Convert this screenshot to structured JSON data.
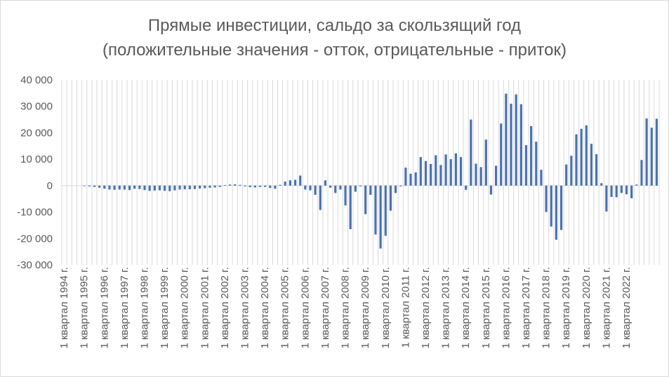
{
  "chart_data": {
    "type": "bar",
    "title": "Прямые инвестиции, сальдо за скользящий год",
    "subtitle": "(положительные значения - отток, отрицательные - приток)",
    "xlabel": "",
    "ylabel": "",
    "ylim": [
      -30000,
      40000
    ],
    "yticks": [
      -30000,
      -20000,
      -10000,
      0,
      10000,
      20000,
      30000,
      40000
    ],
    "ytick_labels": [
      "-30 000",
      "-20 000",
      "-10 000",
      "0",
      "10 000",
      "20 000",
      "30 000",
      "40 000"
    ],
    "grid": "vertical-per-category",
    "legend": "none",
    "bar_color": "#4a72b0",
    "tick_labels": [
      "1 квартал 1994 г.",
      "1 квартал 1995 г.",
      "1 квартал 1996 г.",
      "1 квартал 1997 г.",
      "1 квартал 1998 г.",
      "1 квартал 1999 г.",
      "1 квартал 2000 г.",
      "1 квартал 2001 г.",
      "1 квартал 2002 г.",
      "1 квартал 2003 г.",
      "1 квартал 2004 г.",
      "1 квартал 2005 г.",
      "1 квартал 2006 г.",
      "1 квартал 2007 г.",
      "1 квартал 2008 г.",
      "1 квартал 2009 г.",
      "1 квартал 2010 г.",
      "1 квартал 2011 г.",
      "1 квартал 2012 г.",
      "1 квартал 2013 г.",
      "1 квартал 2014 г.",
      "1 квартал 2015 г.",
      "1 квартал 2016 г.",
      "1 квартал 2017 г.",
      "1 квартал 2018 г.",
      "1 квартал 2019 г.",
      "1 квартал 2020 г.",
      "1 квартал 2021 г.",
      "1 квартал 2022 г."
    ],
    "values": [
      0,
      0,
      0,
      0,
      -200,
      -300,
      -500,
      -800,
      -1200,
      -1500,
      -1600,
      -1500,
      -1500,
      -1700,
      -1200,
      -1300,
      -1700,
      -2000,
      -1900,
      -1800,
      -2000,
      -2100,
      -1800,
      -1500,
      -1400,
      -1400,
      -1300,
      -1100,
      -1000,
      -800,
      -700,
      -500,
      200,
      400,
      500,
      300,
      -300,
      -600,
      -700,
      -500,
      -500,
      -900,
      -1200,
      300,
      1500,
      2000,
      2200,
      3800,
      -1500,
      -1800,
      -3500,
      -9200,
      2000,
      -800,
      -2800,
      -1500,
      -7500,
      -16500,
      -2300,
      -300,
      -10800,
      -3500,
      -18500,
      -23800,
      -19000,
      -9500,
      -2800,
      -300,
      6800,
      4500,
      5000,
      10800,
      9300,
      8200,
      11500,
      7800,
      11800,
      10000,
      12200,
      10800,
      -1600,
      25000,
      8300,
      7000,
      17400,
      -3400,
      7500,
      23500,
      34800,
      31000,
      34500,
      30800,
      15300,
      22500,
      16600,
      6000,
      -10000,
      -15500,
      -20500,
      -16800,
      8000,
      11300,
      19400,
      21500,
      22800,
      15800,
      11900,
      900,
      -9800,
      -4300,
      -4400,
      -2800,
      -3300,
      -4800,
      400,
      9700,
      25400,
      21900,
      25300
    ]
  }
}
